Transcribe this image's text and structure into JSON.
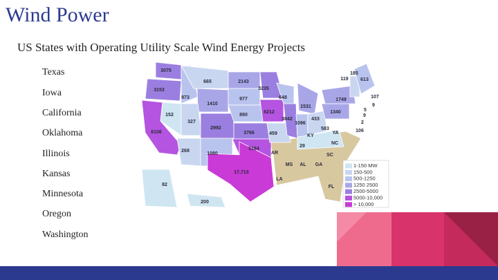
{
  "header": {
    "title": "Wind Power",
    "subtitle": "US States with Operating Utility Scale Wind Energy Projects"
  },
  "list": {
    "items": [
      "Texas",
      "Iowa",
      "California",
      "Oklahoma",
      "Illinois",
      "Kansas",
      "Minnesota",
      "Oregon",
      "Washington"
    ]
  },
  "map": {
    "labels": [
      "3075",
      "665",
      "2143",
      "3235",
      "185",
      "119",
      "613",
      "3153",
      "973",
      "977",
      "648",
      "1749",
      "107",
      "9",
      "1410",
      "1531",
      "5",
      "152",
      "890",
      "6212",
      "1340",
      "9",
      "327",
      "3842",
      "1096",
      "433",
      "583",
      "2",
      "2992",
      "3766",
      "459",
      "YA",
      "106",
      "6106",
      "KY",
      "NC",
      "29",
      "268",
      "1080",
      "5184",
      "AR",
      "SC",
      "17,713",
      "MS",
      "AL",
      "GA",
      "LA",
      "FL",
      "82",
      "200"
    ],
    "legend": [
      "1-150 MW",
      "150-500",
      "500-1250",
      "1250 2500",
      "2500-5000",
      "5000-10,000",
      "> 10,000"
    ]
  }
}
